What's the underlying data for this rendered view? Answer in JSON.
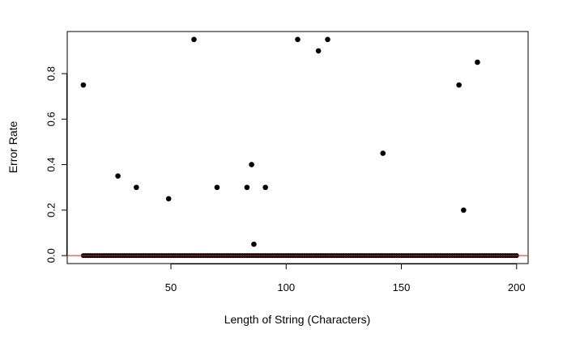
{
  "chart_data": {
    "type": "scatter",
    "xlabel": "Length of String (Characters)",
    "ylabel": "Error Rate",
    "xlim": [
      5,
      205
    ],
    "ylim": [
      -0.035,
      0.985
    ],
    "xticks": [
      50,
      100,
      150,
      200
    ],
    "xtick_labels": [
      "50",
      "100",
      "150",
      "200"
    ],
    "yticks": [
      0.0,
      0.2,
      0.4,
      0.6,
      0.8
    ],
    "ytick_labels": [
      "0.0",
      "0.2",
      "0.4",
      "0.6",
      "0.8"
    ],
    "grid": false,
    "reference_line": {
      "y": 0,
      "color": "#d62728"
    },
    "point_color": "#000000",
    "baseline": {
      "y": 0,
      "x_start": 12,
      "x_end": 200,
      "x_step": 1
    },
    "points": [
      {
        "x": 12,
        "y": 0.75
      },
      {
        "x": 27,
        "y": 0.35
      },
      {
        "x": 35,
        "y": 0.3
      },
      {
        "x": 49,
        "y": 0.25
      },
      {
        "x": 60,
        "y": 0.95
      },
      {
        "x": 70,
        "y": 0.3
      },
      {
        "x": 83,
        "y": 0.3
      },
      {
        "x": 85,
        "y": 0.4
      },
      {
        "x": 86,
        "y": 0.05
      },
      {
        "x": 91,
        "y": 0.3
      },
      {
        "x": 105,
        "y": 0.95
      },
      {
        "x": 114,
        "y": 0.9
      },
      {
        "x": 118,
        "y": 0.95
      },
      {
        "x": 142,
        "y": 0.45
      },
      {
        "x": 175,
        "y": 0.75
      },
      {
        "x": 177,
        "y": 0.2
      },
      {
        "x": 183,
        "y": 0.85
      }
    ]
  }
}
